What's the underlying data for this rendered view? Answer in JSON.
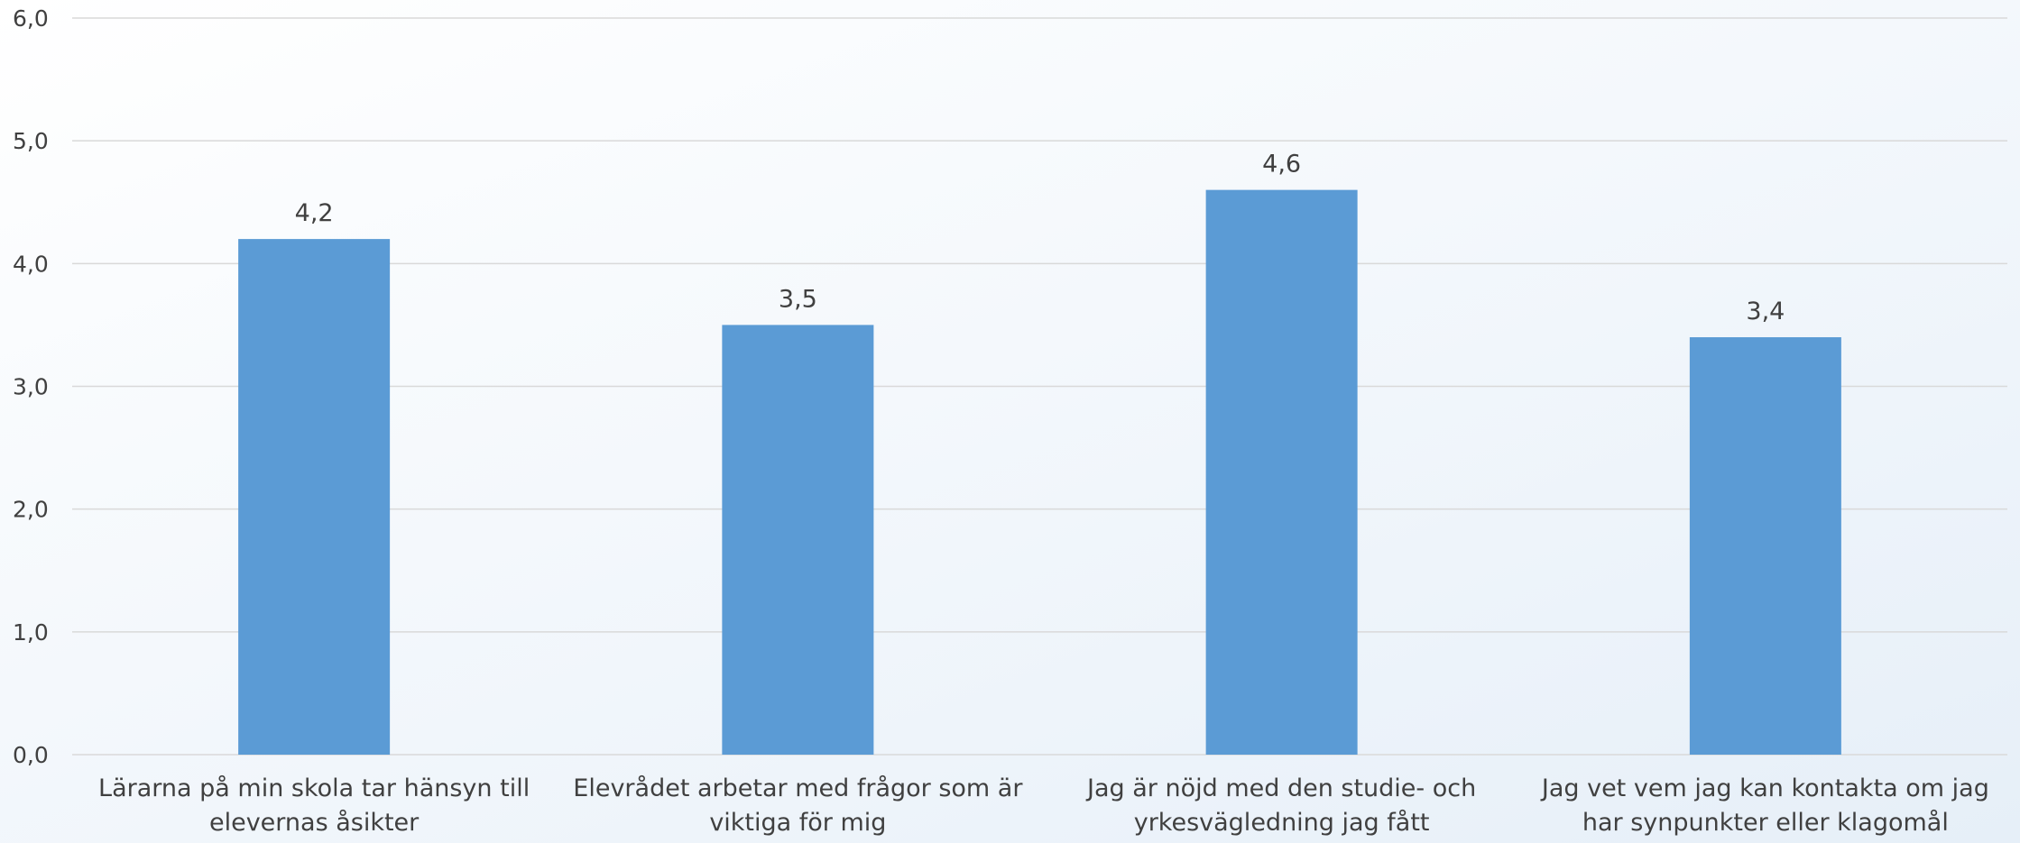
{
  "chart_data": {
    "type": "bar",
    "categories": [
      "Lärarna på min skola tar hänsyn till elevernas åsikter",
      "Elevrådet arbetar med frågor som är viktiga för mig",
      "Jag är nöjd med den studie- och yrkesvägledning jag fått",
      "Jag vet vem jag kan kontakta om jag har synpunkter eller klagomål"
    ],
    "values": [
      4.2,
      3.5,
      4.6,
      3.4
    ],
    "value_labels": [
      "4,2",
      "3,5",
      "4,6",
      "3,4"
    ],
    "y_ticks": [
      "0,0",
      "1,0",
      "2,0",
      "3,0",
      "4,0",
      "5,0",
      "6,0"
    ],
    "ylim": [
      0,
      6
    ],
    "grid": true,
    "legend": "none",
    "bar_color": "#5b9bd5",
    "grid_color": "#d9d9d9",
    "text_color": "#404040"
  }
}
